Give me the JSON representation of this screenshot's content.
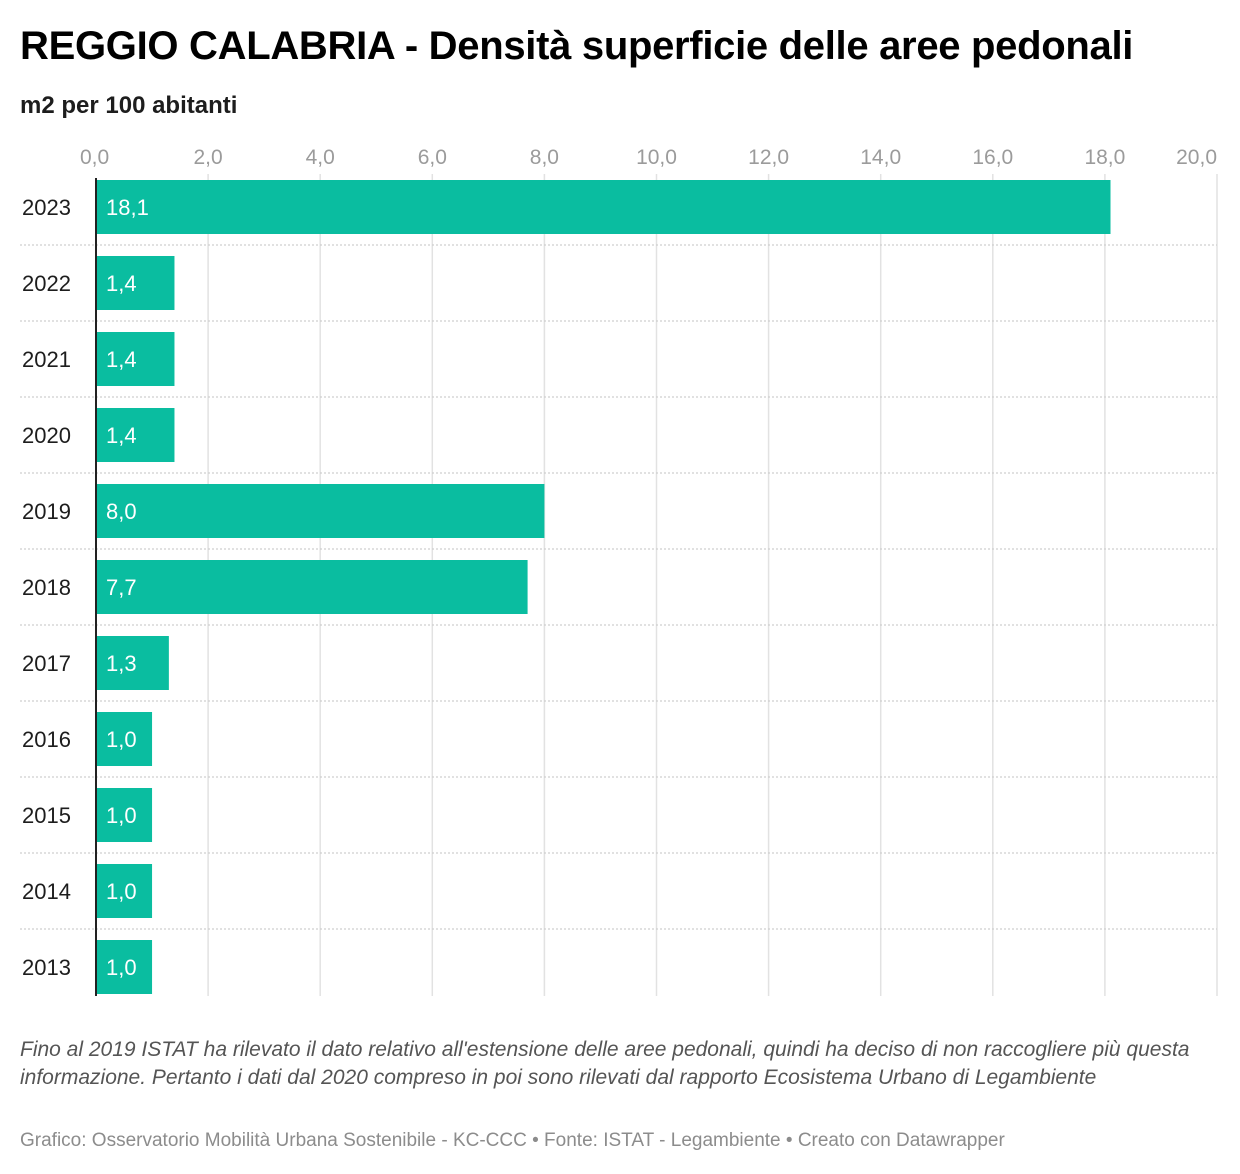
{
  "header": {
    "title": "REGGIO CALABRIA - Densità superficie delle aree pedonali",
    "subtitle": "m2 per 100 abitanti"
  },
  "chart_data": {
    "type": "bar",
    "orientation": "horizontal",
    "categories": [
      "2023",
      "2022",
      "2021",
      "2020",
      "2019",
      "2018",
      "2017",
      "2016",
      "2015",
      "2014",
      "2013"
    ],
    "values": [
      18.1,
      1.4,
      1.4,
      1.4,
      8.0,
      7.7,
      1.3,
      1.0,
      1.0,
      1.0,
      1.0
    ],
    "value_labels": [
      "18,1",
      "1,4",
      "1,4",
      "1,4",
      "8,0",
      "7,7",
      "1,3",
      "1,0",
      "1,0",
      "1,0",
      "1,0"
    ],
    "xlim": [
      0,
      20
    ],
    "x_ticks": [
      0,
      2,
      4,
      6,
      8,
      10,
      12,
      14,
      16,
      18,
      20
    ],
    "x_tick_labels": [
      "0,0",
      "2,0",
      "4,0",
      "6,0",
      "8,0",
      "10,0",
      "12,0",
      "14,0",
      "16,0",
      "18,0",
      "20,0"
    ],
    "axis_position": "top",
    "grid": true,
    "bar_color": "#0abda0",
    "title": "REGGIO CALABRIA - Densità superficie delle aree pedonali",
    "subtitle": "m2 per 100 abitanti"
  },
  "footer": {
    "note": "Fino al 2019 ISTAT ha rilevato il dato relativo all'estensione delle aree pedonali, quindi ha deciso di non raccogliere più questa informazione. Pertanto i dati dal 2020 compreso in poi sono rilevati dal rapporto Ecosistema Urbano di Legambiente",
    "credit": "Grafico: Osservatorio Mobilità Urbana Sostenibile - KC-CCC • Fonte: ISTAT - Legambiente • Creato con Datawrapper"
  }
}
